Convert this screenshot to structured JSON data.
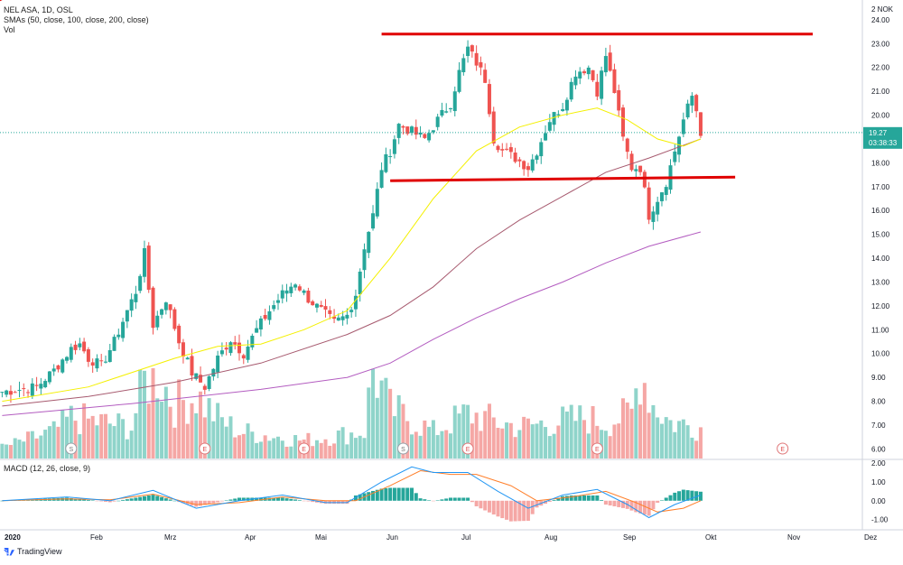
{
  "legend": {
    "symbol": "NEL ASA, 1D, OSL",
    "smas": "SMAs (50, close, 100, close, 200, close)",
    "vol": "Vol",
    "macd": "MACD (12, 26, close, 9)"
  },
  "currency": "NOK",
  "currency_multiplier": "2",
  "last_price": "19.27",
  "countdown": "03:38:33",
  "brand": "TradingView",
  "colors": {
    "up": "#26a69a",
    "down": "#ef5350",
    "vol_up": "#8fd4ca",
    "vol_down": "#f5a7a5",
    "sma50": "#f4f000",
    "sma100": "#a75a6f",
    "sma200": "#b35cc0",
    "macd": "#2196f3",
    "signal": "#ff7f2a",
    "drawing": "#e00000"
  },
  "chart_data": {
    "type": "candlestick",
    "x_ticks": [
      "2020",
      "Feb",
      "Mrz",
      "Apr",
      "Mai",
      "Jun",
      "Jul",
      "Aug",
      "Sep",
      "Okt",
      "Nov",
      "Dez"
    ],
    "price_ticks": [
      "6.00",
      "7.00",
      "8.00",
      "9.00",
      "10.00",
      "11.00",
      "12.00",
      "13.00",
      "14.00",
      "15.00",
      "16.00",
      "17.00",
      "18.00",
      "19.00",
      "20.00",
      "21.00",
      "22.00",
      "23.00",
      "24.00"
    ],
    "price_range": [
      5.6,
      24.6
    ],
    "macd_ticks": [
      "2.00",
      "1.00",
      "0.00",
      "-1.00"
    ],
    "macd_range": [
      -1.45,
      2.15
    ],
    "close_path": [
      [
        0,
        8.4
      ],
      [
        8,
        8.6
      ],
      [
        12,
        9.3
      ],
      [
        16,
        10.2
      ],
      [
        18,
        10.4
      ],
      [
        20,
        9.8
      ],
      [
        23,
        9.5
      ],
      [
        26,
        10.5
      ],
      [
        29,
        11.8
      ],
      [
        31,
        12.6
      ],
      [
        33,
        14.2
      ],
      [
        35,
        11.2
      ],
      [
        38,
        12.3
      ],
      [
        41,
        10.5
      ],
      [
        44,
        9.2
      ],
      [
        47,
        8.6
      ],
      [
        50,
        9.8
      ],
      [
        53,
        10.6
      ],
      [
        56,
        10.0
      ],
      [
        59,
        11.0
      ],
      [
        62,
        11.8
      ],
      [
        65,
        12.5
      ],
      [
        68,
        13.0
      ],
      [
        71,
        12.3
      ],
      [
        74,
        11.8
      ],
      [
        77,
        11.3
      ],
      [
        80,
        11.6
      ],
      [
        82,
        12.5
      ],
      [
        84,
        14.5
      ],
      [
        86,
        15.8
      ],
      [
        88,
        17.8
      ],
      [
        90,
        18.5
      ],
      [
        92,
        19.6
      ],
      [
        95,
        19.3
      ],
      [
        98,
        19.0
      ],
      [
        101,
        19.8
      ],
      [
        104,
        20.5
      ],
      [
        106,
        21.8
      ],
      [
        108,
        22.8
      ],
      [
        110,
        22.2
      ],
      [
        112,
        21.5
      ],
      [
        114,
        19.0
      ],
      [
        116,
        18.5
      ],
      [
        119,
        18.2
      ],
      [
        122,
        17.8
      ],
      [
        124,
        18.5
      ],
      [
        127,
        19.8
      ],
      [
        130,
        20.4
      ],
      [
        133,
        21.8
      ],
      [
        136,
        22.0
      ],
      [
        138,
        21.0
      ],
      [
        140,
        22.5
      ],
      [
        142,
        21.0
      ],
      [
        144,
        19.0
      ],
      [
        146,
        17.8
      ],
      [
        148,
        17.8
      ],
      [
        150,
        15.8
      ],
      [
        152,
        16.5
      ],
      [
        154,
        17.2
      ],
      [
        156,
        18.5
      ],
      [
        158,
        19.8
      ],
      [
        160,
        20.8
      ],
      [
        161,
        20.2
      ],
      [
        162,
        19.3
      ]
    ],
    "sma50_path": [
      [
        0,
        8.0
      ],
      [
        20,
        8.6
      ],
      [
        40,
        9.8
      ],
      [
        50,
        10.3
      ],
      [
        60,
        10.4
      ],
      [
        70,
        11.0
      ],
      [
        80,
        11.8
      ],
      [
        90,
        14.0
      ],
      [
        100,
        16.5
      ],
      [
        110,
        18.5
      ],
      [
        120,
        19.5
      ],
      [
        130,
        20.0
      ],
      [
        138,
        20.3
      ],
      [
        145,
        19.8
      ],
      [
        152,
        19.0
      ],
      [
        158,
        18.7
      ],
      [
        162,
        19.0
      ]
    ],
    "sma100_path": [
      [
        0,
        7.8
      ],
      [
        20,
        8.2
      ],
      [
        40,
        8.8
      ],
      [
        60,
        9.6
      ],
      [
        80,
        10.8
      ],
      [
        90,
        11.6
      ],
      [
        100,
        12.8
      ],
      [
        110,
        14.4
      ],
      [
        120,
        15.6
      ],
      [
        130,
        16.6
      ],
      [
        140,
        17.6
      ],
      [
        150,
        18.2
      ],
      [
        162,
        19.0
      ]
    ],
    "sma200_path": [
      [
        0,
        7.4
      ],
      [
        30,
        7.9
      ],
      [
        60,
        8.5
      ],
      [
        80,
        9.0
      ],
      [
        90,
        9.6
      ],
      [
        100,
        10.6
      ],
      [
        110,
        11.5
      ],
      [
        120,
        12.3
      ],
      [
        130,
        13.0
      ],
      [
        140,
        13.8
      ],
      [
        150,
        14.5
      ],
      [
        162,
        15.1
      ]
    ],
    "volume_path": [
      [
        0,
        0.12
      ],
      [
        12,
        0.3
      ],
      [
        16,
        0.45
      ],
      [
        30,
        0.35
      ],
      [
        33,
        0.85
      ],
      [
        36,
        0.95
      ],
      [
        40,
        0.6
      ],
      [
        45,
        0.7
      ],
      [
        50,
        0.45
      ],
      [
        55,
        0.3
      ],
      [
        70,
        0.2
      ],
      [
        84,
        0.3
      ],
      [
        86,
        1.0
      ],
      [
        90,
        0.55
      ],
      [
        100,
        0.3
      ],
      [
        108,
        0.5
      ],
      [
        115,
        0.4
      ],
      [
        120,
        0.35
      ],
      [
        135,
        0.45
      ],
      [
        140,
        0.4
      ],
      [
        146,
        0.5
      ],
      [
        148,
        1.0
      ],
      [
        151,
        0.6
      ],
      [
        155,
        0.4
      ],
      [
        162,
        0.35
      ]
    ],
    "macd_path": [
      [
        0,
        0.0
      ],
      [
        15,
        0.2
      ],
      [
        25,
        0.0
      ],
      [
        35,
        0.55
      ],
      [
        45,
        -0.4
      ],
      [
        55,
        0.0
      ],
      [
        65,
        0.3
      ],
      [
        75,
        -0.1
      ],
      [
        80,
        -0.1
      ],
      [
        88,
        1.0
      ],
      [
        95,
        1.8
      ],
      [
        100,
        1.5
      ],
      [
        108,
        1.5
      ],
      [
        115,
        0.5
      ],
      [
        122,
        -0.4
      ],
      [
        130,
        0.3
      ],
      [
        138,
        0.6
      ],
      [
        145,
        -0.2
      ],
      [
        150,
        -0.9
      ],
      [
        156,
        -0.2
      ],
      [
        162,
        0.3
      ]
    ],
    "signal_path": [
      [
        0,
        0.0
      ],
      [
        15,
        0.1
      ],
      [
        25,
        0.05
      ],
      [
        35,
        0.35
      ],
      [
        45,
        -0.2
      ],
      [
        55,
        -0.1
      ],
      [
        65,
        0.2
      ],
      [
        75,
        0.0
      ],
      [
        82,
        0.0
      ],
      [
        90,
        0.8
      ],
      [
        97,
        1.6
      ],
      [
        104,
        1.4
      ],
      [
        110,
        1.4
      ],
      [
        118,
        0.8
      ],
      [
        124,
        0.0
      ],
      [
        132,
        0.2
      ],
      [
        140,
        0.5
      ],
      [
        147,
        -0.1
      ],
      [
        152,
        -0.6
      ],
      [
        158,
        -0.4
      ],
      [
        162,
        0.0
      ]
    ],
    "events": [
      {
        "label": "S",
        "day": 16
      },
      {
        "label": "E",
        "day": 47
      },
      {
        "label": "E",
        "day": 70
      },
      {
        "label": "S",
        "day": 93
      },
      {
        "label": "E",
        "day": 108
      },
      {
        "label": "E",
        "day": 138
      },
      {
        "label": "E",
        "day": 181
      }
    ],
    "drawings": [
      {
        "type": "line",
        "from": [
          -1,
          24.8
        ],
        "to": [
          19,
          26.5
        ]
      },
      {
        "type": "horizontal",
        "from": [
          88,
          23.4
        ],
        "to": [
          188,
          23.4
        ]
      },
      {
        "type": "line",
        "from": [
          90,
          17.25
        ],
        "to": [
          170,
          17.4
        ]
      }
    ],
    "total_days": 200
  }
}
